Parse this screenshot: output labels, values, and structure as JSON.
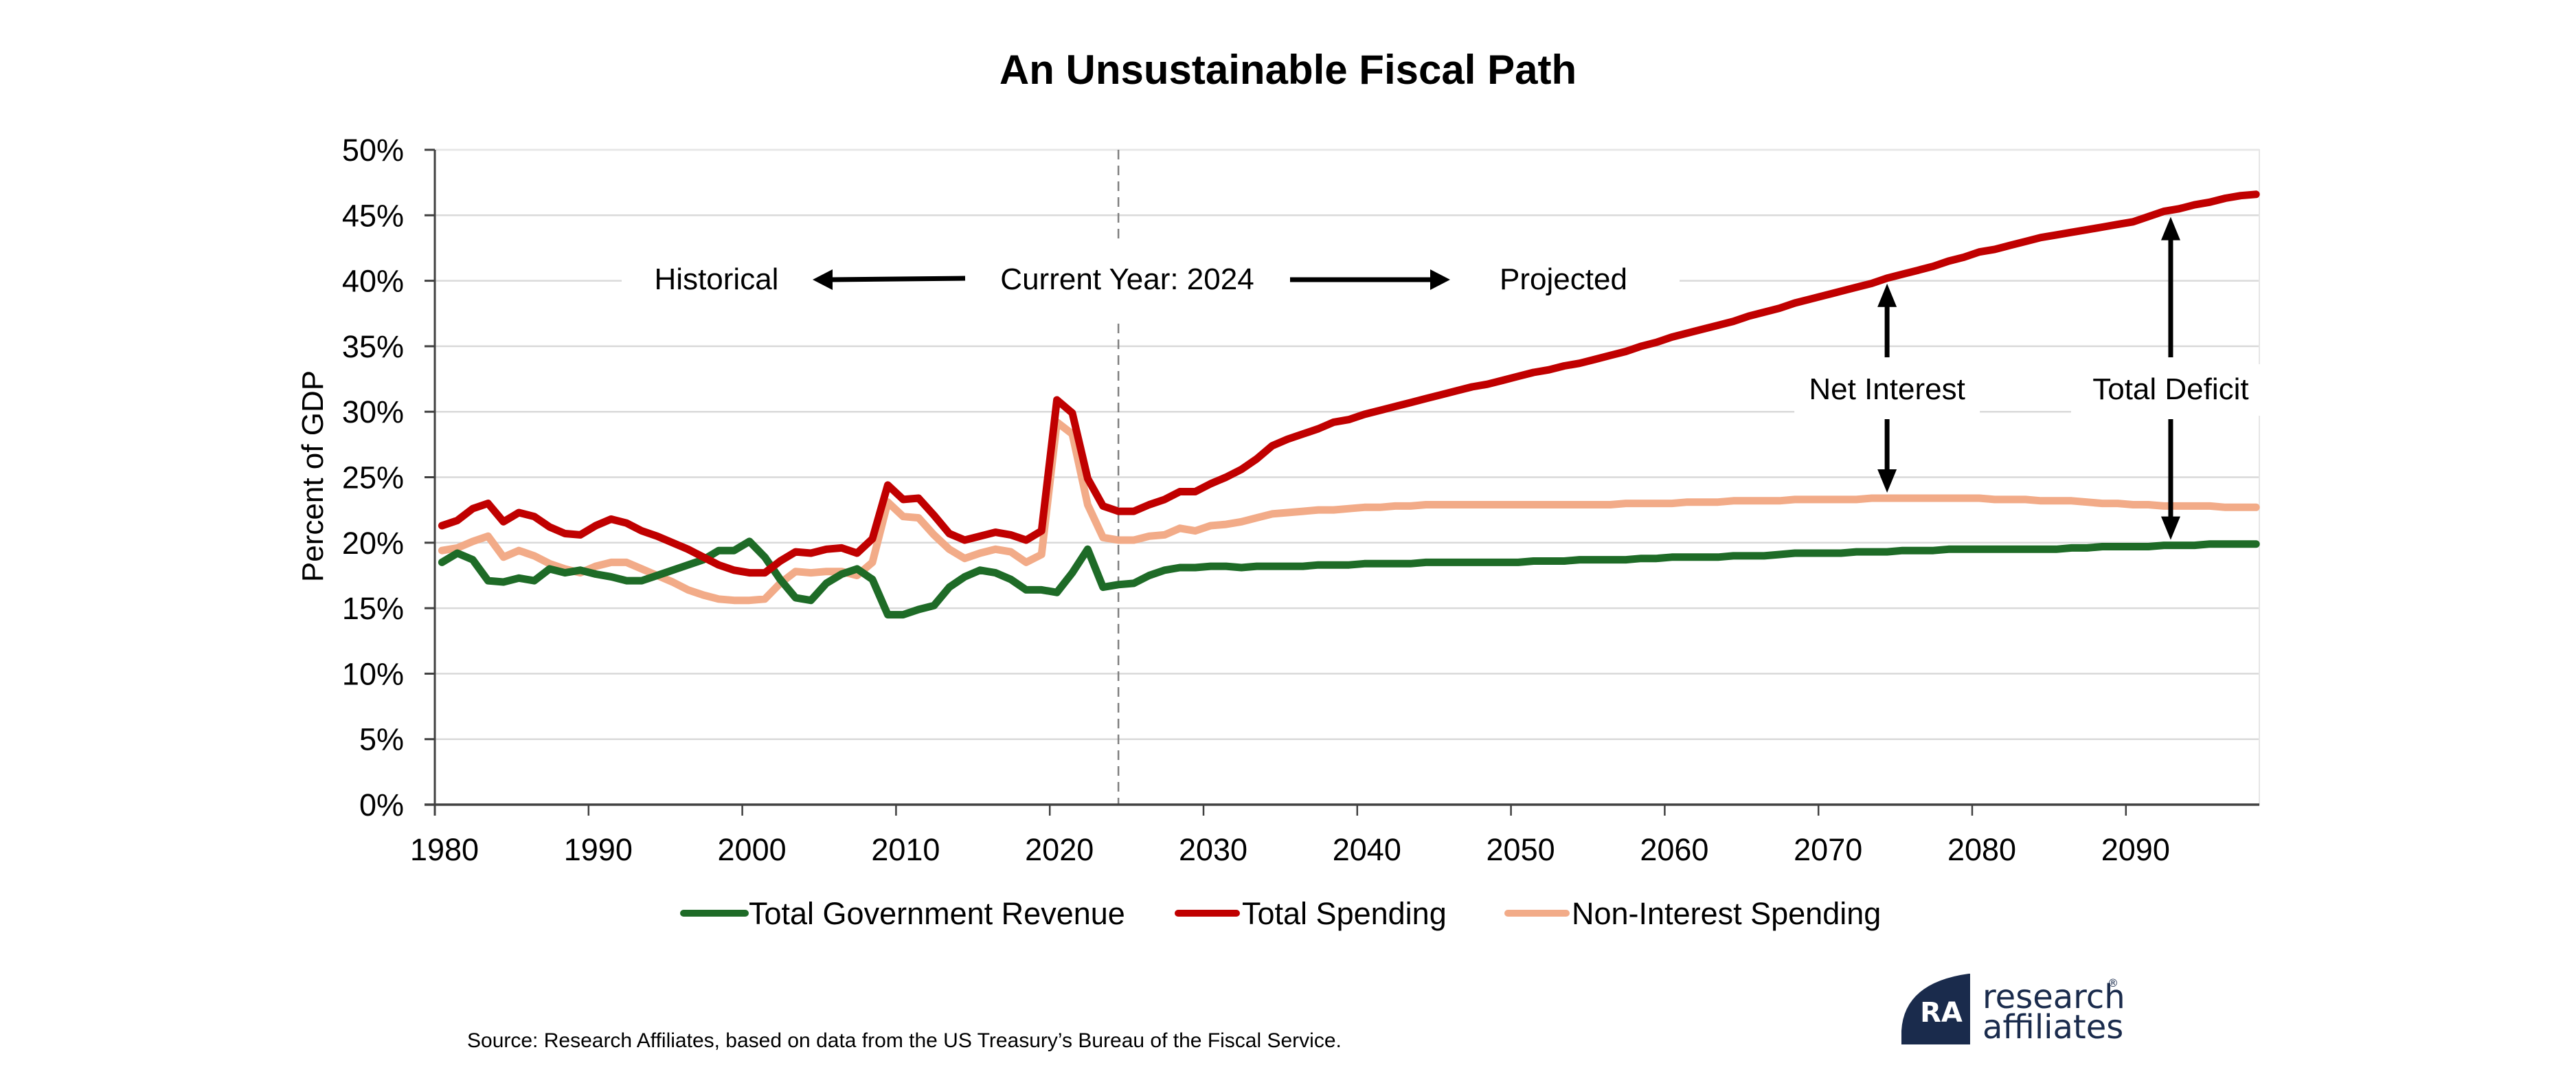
{
  "chart_data": {
    "type": "line",
    "title": "An Unsustainable Fiscal Path",
    "xlabel": "",
    "ylabel": "Percent of GDP",
    "x_start": 1980,
    "x_end": 2098,
    "xlim": [
      1980,
      2098
    ],
    "ylim": [
      0,
      50
    ],
    "y_ticks": [
      0,
      5,
      10,
      15,
      20,
      25,
      30,
      35,
      40,
      45,
      50
    ],
    "y_tick_labels": [
      "0%",
      "5%",
      "10%",
      "15%",
      "20%",
      "25%",
      "30%",
      "35%",
      "40%",
      "45%",
      "50%"
    ],
    "x_ticks": [
      1980,
      1990,
      2000,
      2010,
      2020,
      2030,
      2040,
      2050,
      2060,
      2070,
      2080,
      2090
    ],
    "x_tick_labels": [
      "1980",
      "1990",
      "2000",
      "2010",
      "2020",
      "2030",
      "2040",
      "2050",
      "2060",
      "2070",
      "2080",
      "2090"
    ],
    "grid": true,
    "legend_position": "bottom",
    "series": [
      {
        "name": "Total Government Revenue",
        "color": "#1e6b27",
        "values": [
          18.5,
          19.2,
          18.7,
          17.1,
          17.0,
          17.3,
          17.1,
          18.0,
          17.7,
          17.9,
          17.6,
          17.4,
          17.1,
          17.1,
          17.5,
          17.9,
          18.3,
          18.7,
          19.4,
          19.4,
          20.1,
          18.9,
          17.2,
          15.8,
          15.6,
          16.9,
          17.6,
          18.0,
          17.2,
          14.5,
          14.5,
          14.9,
          15.2,
          16.6,
          17.4,
          17.9,
          17.7,
          17.2,
          16.4,
          16.4,
          16.2,
          17.7,
          19.5,
          16.6,
          16.8,
          16.9,
          17.5,
          17.9,
          18.1,
          18.1,
          18.2,
          18.2,
          18.1,
          18.2,
          18.2,
          18.2,
          18.2,
          18.3,
          18.3,
          18.3,
          18.4,
          18.4,
          18.4,
          18.4,
          18.5,
          18.5,
          18.5,
          18.5,
          18.5,
          18.5,
          18.5,
          18.6,
          18.6,
          18.6,
          18.7,
          18.7,
          18.7,
          18.7,
          18.8,
          18.8,
          18.9,
          18.9,
          18.9,
          18.9,
          19.0,
          19.0,
          19.0,
          19.1,
          19.2,
          19.2,
          19.2,
          19.2,
          19.3,
          19.3,
          19.3,
          19.4,
          19.4,
          19.4,
          19.5,
          19.5,
          19.5,
          19.5,
          19.5,
          19.5,
          19.5,
          19.5,
          19.6,
          19.6,
          19.7,
          19.7,
          19.7,
          19.7,
          19.8,
          19.8,
          19.8,
          19.9,
          19.9,
          19.9,
          19.9
        ]
      },
      {
        "name": "Total Spending",
        "color": "#c00000",
        "values": [
          21.3,
          21.7,
          22.6,
          23.0,
          21.6,
          22.3,
          22.0,
          21.2,
          20.7,
          20.6,
          21.3,
          21.8,
          21.5,
          20.9,
          20.5,
          20.0,
          19.5,
          18.9,
          18.3,
          17.9,
          17.7,
          17.7,
          18.6,
          19.3,
          19.2,
          19.5,
          19.6,
          19.2,
          20.3,
          24.4,
          23.3,
          23.4,
          22.1,
          20.7,
          20.2,
          20.5,
          20.8,
          20.6,
          20.2,
          20.9,
          30.9,
          29.9,
          24.9,
          22.8,
          22.4,
          22.4,
          22.9,
          23.3,
          23.9,
          23.9,
          24.5,
          25.0,
          25.6,
          26.4,
          27.4,
          27.9,
          28.3,
          28.7,
          29.2,
          29.4,
          29.8,
          30.1,
          30.4,
          30.7,
          31.0,
          31.3,
          31.6,
          31.9,
          32.1,
          32.4,
          32.7,
          33.0,
          33.2,
          33.5,
          33.7,
          34.0,
          34.3,
          34.6,
          35.0,
          35.3,
          35.7,
          36.0,
          36.3,
          36.6,
          36.9,
          37.3,
          37.6,
          37.9,
          38.3,
          38.6,
          38.9,
          39.2,
          39.5,
          39.8,
          40.2,
          40.5,
          40.8,
          41.1,
          41.5,
          41.8,
          42.2,
          42.4,
          42.7,
          43.0,
          43.3,
          43.5,
          43.7,
          43.9,
          44.1,
          44.3,
          44.5,
          44.9,
          45.3,
          45.5,
          45.8,
          46.0,
          46.3,
          46.5,
          46.6
        ]
      },
      {
        "name": "Non-Interest Spending",
        "color": "#f2ab88",
        "values": [
          19.4,
          19.6,
          20.1,
          20.5,
          18.9,
          19.4,
          19.0,
          18.4,
          18.0,
          17.7,
          18.2,
          18.5,
          18.5,
          18.0,
          17.5,
          17.0,
          16.4,
          16.0,
          15.7,
          15.6,
          15.6,
          15.7,
          16.9,
          17.8,
          17.7,
          17.8,
          17.8,
          17.5,
          18.5,
          23.1,
          22.0,
          21.9,
          20.6,
          19.5,
          18.8,
          19.2,
          19.5,
          19.3,
          18.5,
          19.1,
          29.2,
          28.3,
          22.9,
          20.4,
          20.2,
          20.2,
          20.5,
          20.6,
          21.1,
          20.9,
          21.3,
          21.4,
          21.6,
          21.9,
          22.2,
          22.3,
          22.4,
          22.5,
          22.5,
          22.6,
          22.7,
          22.7,
          22.8,
          22.8,
          22.9,
          22.9,
          22.9,
          22.9,
          22.9,
          22.9,
          22.9,
          22.9,
          22.9,
          22.9,
          22.9,
          22.9,
          22.9,
          23.0,
          23.0,
          23.0,
          23.0,
          23.1,
          23.1,
          23.1,
          23.2,
          23.2,
          23.2,
          23.2,
          23.3,
          23.3,
          23.3,
          23.3,
          23.3,
          23.4,
          23.4,
          23.4,
          23.4,
          23.4,
          23.4,
          23.4,
          23.4,
          23.3,
          23.3,
          23.3,
          23.2,
          23.2,
          23.2,
          23.1,
          23.0,
          23.0,
          22.9,
          22.9,
          22.8,
          22.8,
          22.8,
          22.8,
          22.7,
          22.7,
          22.7
        ]
      }
    ],
    "current_year": 2024,
    "annotations": {
      "historical": "Historical",
      "current_year": "Current Year: 2024",
      "projected": "Projected",
      "net_interest": "Net Interest",
      "net_interest_year": 2074,
      "total_deficit": "Total Deficit",
      "total_deficit_year": 2092
    },
    "source": "Source: Research Affiliates, based on data from the US Treasury’s Bureau of the Fiscal Service."
  },
  "logo": {
    "line1": "research",
    "line2": "affiliates",
    "mark": "RA",
    "registered": "®",
    "color": "#1a2b4c"
  },
  "colors": {
    "gridline": "#d9d9d9",
    "axis": "#404040",
    "text": "#000000"
  }
}
